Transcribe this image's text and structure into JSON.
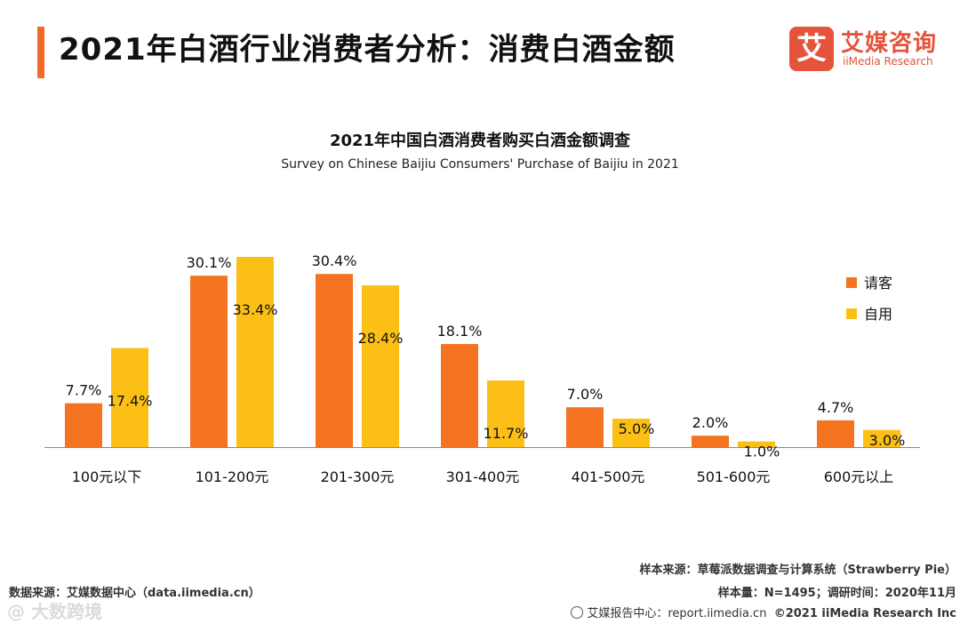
{
  "header": {
    "title": "2021年白酒行业消费者分析：消费白酒金额"
  },
  "logo": {
    "mark": "艾",
    "cn": "艾媒咨询",
    "en": "iiMedia Research"
  },
  "colors": {
    "accent": "#f06a2a",
    "series1": "#f47321",
    "series2": "#fcbf16"
  },
  "chart_data": {
    "type": "bar",
    "title": "2021年中国白酒消费者购买白酒金额调查",
    "subtitle": "Survey on Chinese Baijiu Consumers' Purchase of Baijiu in 2021",
    "categories": [
      "100元以下",
      "101-200元",
      "201-300元",
      "301-400元",
      "401-500元",
      "501-600元",
      "600元以上"
    ],
    "series": [
      {
        "name": "请客",
        "values": [
          7.7,
          30.1,
          30.4,
          18.1,
          7.0,
          2.0,
          4.7
        ],
        "labels": [
          "7.7%",
          "30.1%",
          "30.4%",
          "18.1%",
          "7.0%",
          "2.0%",
          "4.7%"
        ]
      },
      {
        "name": "自用",
        "values": [
          17.4,
          33.4,
          28.4,
          11.7,
          5.0,
          1.0,
          3.0
        ],
        "labels": [
          "17.4%",
          "33.4%",
          "28.4%",
          "11.7%",
          "5.0%",
          "1.0%",
          "3.0%"
        ]
      }
    ],
    "ylim": [
      0,
      33.4
    ],
    "legend": "right",
    "grid": false,
    "unit": "%"
  },
  "footer": {
    "data_source": "数据来源：艾媒数据中心（data.iimedia.cn）",
    "sample_source": "样本来源：草莓派数据调查与计算系统（Strawberry Pie）",
    "sample_size": "样本量：N=1495；调研时间：2020年11月",
    "report_center": "艾媒报告中心：report.iimedia.cn",
    "copyright": "©2021  iiMedia Research  Inc"
  },
  "watermark": "@ 大数跨境"
}
